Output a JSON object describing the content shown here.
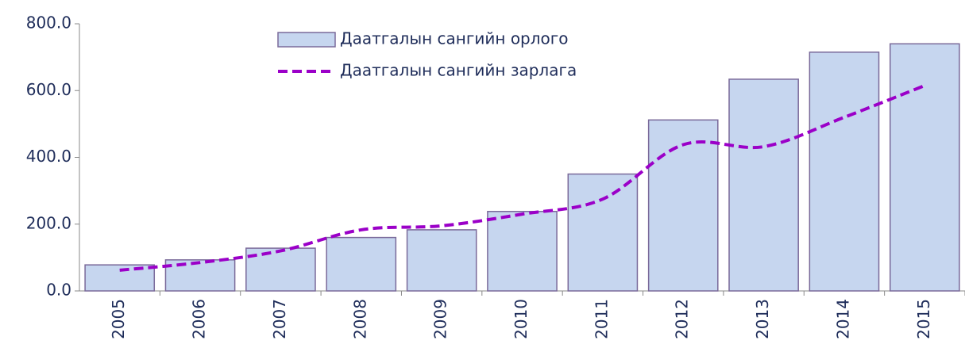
{
  "chart_data": {
    "type": "bar_line",
    "categories": [
      "2005",
      "2006",
      "2007",
      "2008",
      "2009",
      "2010",
      "2011",
      "2012",
      "2013",
      "2014",
      "2015"
    ],
    "series": [
      {
        "name": "Даатгалын сангийн орлого",
        "type": "bar",
        "color": "#c6d6ef",
        "values": [
          78,
          93,
          128,
          160,
          183,
          238,
          350,
          512,
          634,
          715,
          740
        ]
      },
      {
        "name": "Даатгалын сангийн зарлага",
        "type": "line",
        "color": "#9b00c8",
        "values": [
          62,
          85,
          120,
          183,
          195,
          230,
          275,
          438,
          432,
          520,
          615
        ]
      }
    ],
    "ylim": [
      0,
      800
    ],
    "yticks": [
      {
        "value": 0,
        "label": "0.0"
      },
      {
        "value": 200,
        "label": "200.0"
      },
      {
        "value": 400,
        "label": "400.0"
      },
      {
        "value": 600,
        "label": "600.0"
      },
      {
        "value": 800,
        "label": "800.0"
      }
    ]
  }
}
